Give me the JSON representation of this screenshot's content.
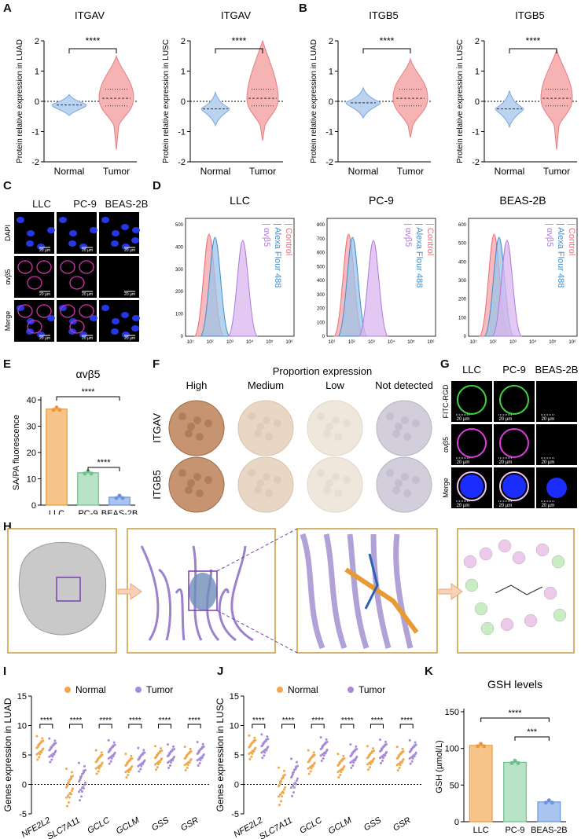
{
  "panels": {
    "A": "A",
    "B": "B",
    "C": "C",
    "D": "D",
    "E": "E",
    "F": "F",
    "G": "G",
    "H": "H",
    "I": "I",
    "J": "J",
    "K": "K"
  },
  "violin": {
    "yticks": [
      "-2",
      "-1",
      "0",
      "1",
      "2"
    ],
    "groups": [
      "Normal",
      "Tumor"
    ],
    "sig": "****",
    "plots": [
      {
        "title": "ITGAV",
        "ylabel": "Protein relative expression in LUAD"
      },
      {
        "title": "ITGAV",
        "ylabel": "Protein relative expression in LUSC"
      },
      {
        "title": "ITGB5",
        "ylabel": "Protein relative expression in LUAD"
      },
      {
        "title": "ITGB5",
        "ylabel": "Protein relative expression in LUSC"
      }
    ]
  },
  "panelC": {
    "cols": [
      "LLC",
      "PC-9",
      "BEAS-2B"
    ],
    "rows": [
      "DAPI",
      "αvβ5",
      "Merge"
    ],
    "scale": "20 µm"
  },
  "panelD": {
    "plots": [
      {
        "title": "LLC"
      },
      {
        "title": "PC-9"
      },
      {
        "title": "BEAS-2B"
      }
    ],
    "legend": [
      "Control",
      "Alexa Flour 488",
      "αvβ5"
    ],
    "xticks": [
      "10¹",
      "10²",
      "10³",
      "10⁴",
      "10⁵",
      "10⁶"
    ],
    "yticks_llc": [
      "0",
      "100",
      "200",
      "300",
      "400",
      "500"
    ],
    "yticks_pc9": [
      "0",
      "100",
      "200",
      "300",
      "400",
      "500",
      "600",
      "700",
      "800"
    ],
    "yticks_beas": [
      "0",
      "100",
      "200",
      "300",
      "400",
      "500",
      "600"
    ]
  },
  "chart_data": [
    {
      "type": "bar",
      "title": "αvβ5",
      "ylabel": "SA/PA fluorescence",
      "categories": [
        "LLC",
        "PC-9",
        "BEAS-2B"
      ],
      "values": [
        36.5,
        12.3,
        3.0
      ],
      "ylim": [
        0,
        40
      ],
      "yticks": [
        "0",
        "10",
        "20",
        "30",
        "40"
      ],
      "sig": [
        "****",
        "****"
      ],
      "colors": [
        "#f7c58a",
        "#b9e3c6",
        "#a9c4ee"
      ]
    },
    {
      "type": "bar",
      "title": "GSH levels",
      "ylabel": "GSH (µmol/L)",
      "categories": [
        "LLC",
        "PC-9",
        "BEAS-2B"
      ],
      "values": [
        104,
        81,
        27
      ],
      "ylim": [
        0,
        150
      ],
      "yticks": [
        "0",
        "50",
        "100",
        "150"
      ],
      "sig": [
        "****",
        "***"
      ],
      "colors": [
        "#f7c58a",
        "#b9e3c6",
        "#a9c4ee"
      ]
    }
  ],
  "panelF": {
    "header": "Proportion expression",
    "cols": [
      "High",
      "Medium",
      "Low",
      "Not detected"
    ],
    "rows": [
      "ITGAV",
      "ITGB5"
    ]
  },
  "panelG": {
    "cols": [
      "LLC",
      "PC-9",
      "BEAS-2B"
    ],
    "rows": [
      "FITC-RGD",
      "αvβ5",
      "Merge"
    ],
    "scale": "20 µm"
  },
  "genes": {
    "names": [
      "NFE2L2",
      "SLC7A11",
      "GCLC",
      "GCLM",
      "GSS",
      "GSR"
    ],
    "legend": [
      "Normal",
      "Tumor"
    ],
    "yticks": [
      "-5",
      "0",
      "5",
      "10",
      "15"
    ],
    "sig": "****",
    "plots": [
      {
        "ylabel": "Genes expression in LUAD"
      },
      {
        "ylabel": "Genes expression in LUSC"
      }
    ]
  }
}
